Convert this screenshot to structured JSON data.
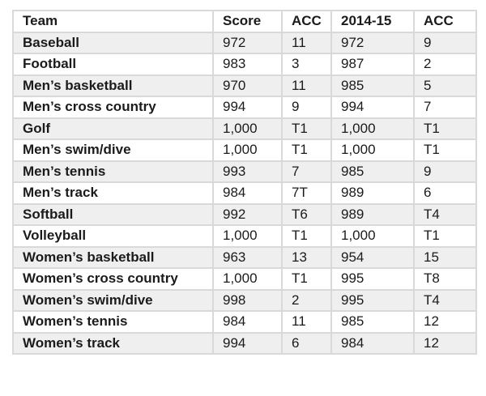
{
  "chart_data": {
    "type": "table",
    "columns": [
      "Team",
      "Score",
      "ACC",
      "2014-15",
      "ACC"
    ],
    "rows": [
      [
        "Baseball",
        "972",
        "11",
        "972",
        "9"
      ],
      [
        "Football",
        "983",
        "3",
        "987",
        "2"
      ],
      [
        "Men’s basketball",
        "970",
        "11",
        "985",
        "5"
      ],
      [
        "Men’s cross country",
        "994",
        "9",
        "994",
        "7"
      ],
      [
        "Golf",
        "1,000",
        "T1",
        "1,000",
        "T1"
      ],
      [
        "Men’s swim/dive",
        "1,000",
        "T1",
        "1,000",
        "T1"
      ],
      [
        "Men’s tennis",
        "993",
        "7",
        "985",
        "9"
      ],
      [
        "Men’s track",
        "984",
        "7T",
        "989",
        "6"
      ],
      [
        "Softball",
        "992",
        "T6",
        "989",
        "T4"
      ],
      [
        "Volleyball",
        "1,000",
        "T1",
        "1,000",
        "T1"
      ],
      [
        "Women’s basketball",
        "963",
        "13",
        "954",
        "15"
      ],
      [
        "Women’s cross country",
        "1,000",
        "T1",
        "995",
        "T8"
      ],
      [
        "Women’s swim/dive",
        "998",
        "2",
        "995",
        "T4"
      ],
      [
        "Women’s tennis",
        "984",
        "11",
        "985",
        "12"
      ],
      [
        "Women’s track",
        "994",
        "6",
        "984",
        "12"
      ]
    ],
    "layout": {
      "striping": "alternating rows shaded light gray starting with first data row",
      "first_column_bold": true,
      "header_bold": true
    },
    "colors": {
      "background": "#ffffff",
      "stripe": "#efefef",
      "border": "#d9d9d9",
      "text": "#1b1b1b"
    }
  }
}
